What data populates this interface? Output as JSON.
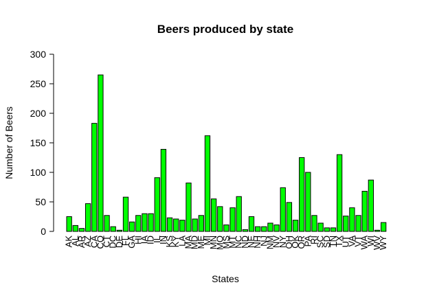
{
  "chart_data": {
    "type": "bar",
    "title": "Beers produced by state",
    "xlabel": "States",
    "ylabel": "Number of Beers",
    "ylim": [
      0,
      300
    ],
    "yticks": [
      0,
      50,
      100,
      150,
      200,
      250,
      300
    ],
    "grid": false,
    "bar_color": "#00ff00",
    "categories": [
      "AK",
      "AL",
      "AR",
      "AZ",
      "CA",
      "CO",
      "CT",
      "DC",
      "DE",
      "FL",
      "GA",
      "HI",
      "IA",
      "ID",
      "IL",
      "IN",
      "KS",
      "KY",
      "LA",
      "MA",
      "MD",
      "ME",
      "MI",
      "MN",
      "MO",
      "MS",
      "MT",
      "NC",
      "ND",
      "NE",
      "NH",
      "NJ",
      "NM",
      "NV",
      "NY",
      "OH",
      "OK",
      "OR",
      "PA",
      "RI",
      "SC",
      "SD",
      "TN",
      "TX",
      "UT",
      "VA",
      "VT",
      "WA",
      "WI",
      "WV",
      "WY"
    ],
    "values": [
      25,
      10,
      5,
      47,
      183,
      265,
      27,
      8,
      2,
      58,
      16,
      27,
      30,
      30,
      91,
      139,
      23,
      21,
      19,
      82,
      21,
      27,
      162,
      55,
      42,
      11,
      40,
      59,
      3,
      25,
      8,
      8,
      14,
      11,
      74,
      49,
      19,
      125,
      100,
      27,
      14,
      6,
      6,
      130,
      26,
      40,
      27,
      68,
      87,
      2,
      15
    ]
  }
}
